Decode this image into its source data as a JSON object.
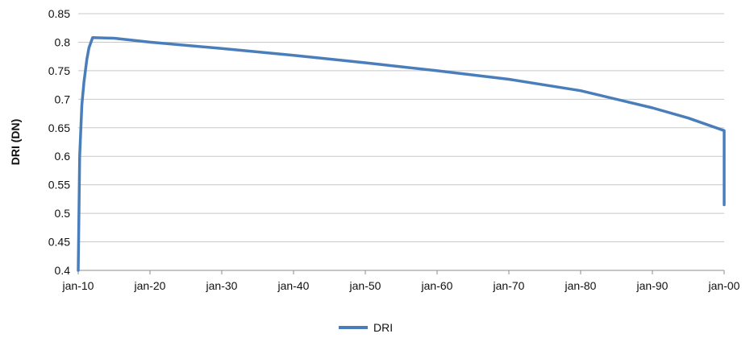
{
  "chart_data": {
    "type": "line",
    "ylabel": "DRI (DN)",
    "ylim": [
      0.4,
      0.85
    ],
    "y_ticks": [
      "0.4",
      "0.45",
      "0.5",
      "0.55",
      "0.6",
      "0.65",
      "0.7",
      "0.75",
      "0.8",
      "0.85"
    ],
    "x_ticks": [
      "jan-10",
      "jan-20",
      "jan-30",
      "jan-40",
      "jan-50",
      "jan-60",
      "jan-70",
      "jan-80",
      "jan-90",
      "jan-00"
    ],
    "grid": true,
    "legend": "bottom",
    "series": [
      {
        "name": "DRI",
        "color": "#4a7ebb",
        "points": [
          [
            0,
            0.4
          ],
          [
            0.02,
            0.6
          ],
          [
            0.05,
            0.69
          ],
          [
            0.08,
            0.73
          ],
          [
            0.12,
            0.77
          ],
          [
            0.15,
            0.79
          ],
          [
            0.2,
            0.808
          ],
          [
            0.5,
            0.807
          ],
          [
            1.0,
            0.8
          ],
          [
            2.0,
            0.789
          ],
          [
            3.0,
            0.777
          ],
          [
            4.0,
            0.764
          ],
          [
            5.0,
            0.75
          ],
          [
            6.0,
            0.735
          ],
          [
            7.0,
            0.715
          ],
          [
            8.0,
            0.685
          ],
          [
            8.5,
            0.667
          ],
          [
            9.0,
            0.645
          ],
          [
            9.3,
            0.635
          ],
          [
            9.5,
            0.627
          ],
          [
            9.7,
            0.612
          ],
          [
            9.8,
            0.6
          ],
          [
            9.9,
            0.582
          ],
          [
            10.0,
            0.555
          ],
          [
            10.08,
            0.53
          ],
          [
            10.12,
            0.515
          ]
        ]
      }
    ]
  }
}
